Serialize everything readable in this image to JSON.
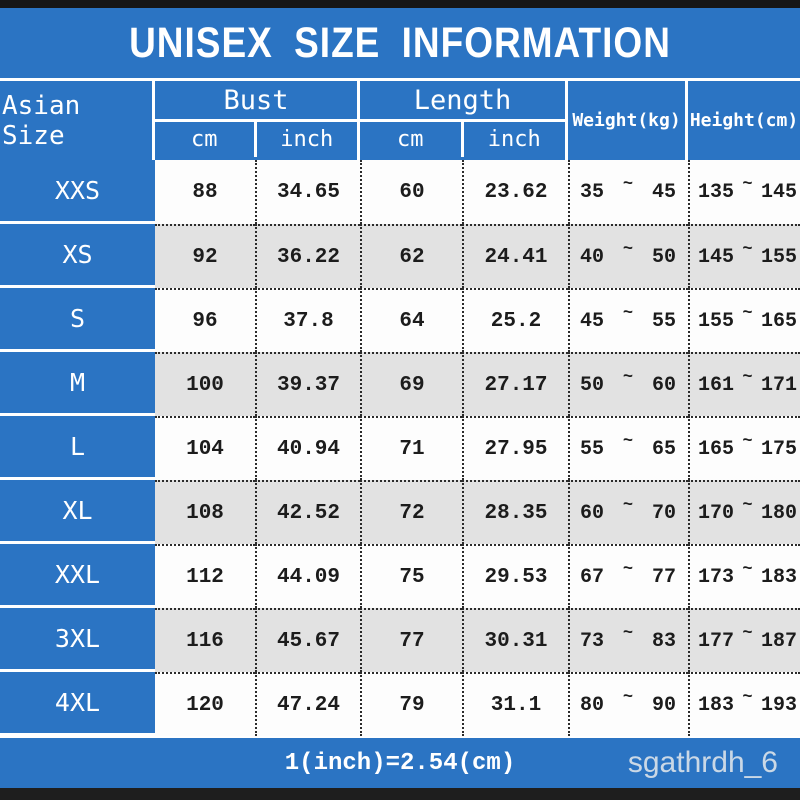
{
  "title": "UNISEX SIZE INFORMATION",
  "colors": {
    "accent_blue": "#2b74c3",
    "row_alt_gray": "#e2e2e2",
    "top_bar": "#161616",
    "bottom_bar": "#1e1e1e"
  },
  "table": {
    "header": {
      "size_label": "Asian Size",
      "bust_label": "Bust",
      "length_label": "Length",
      "unit_cm": "cm",
      "unit_inch": "inch",
      "weight_label": "Weight(kg)",
      "height_label": "Height(cm)"
    },
    "tilde": "~",
    "rows": [
      {
        "size": "XXS",
        "bust_cm": "88",
        "bust_inch": "34.65",
        "length_cm": "60",
        "length_inch": "23.62",
        "weight_min": "35",
        "weight_max": "45",
        "height_min": "135",
        "height_max": "145"
      },
      {
        "size": "XS",
        "bust_cm": "92",
        "bust_inch": "36.22",
        "length_cm": "62",
        "length_inch": "24.41",
        "weight_min": "40",
        "weight_max": "50",
        "height_min": "145",
        "height_max": "155"
      },
      {
        "size": "S",
        "bust_cm": "96",
        "bust_inch": "37.8",
        "length_cm": "64",
        "length_inch": "25.2",
        "weight_min": "45",
        "weight_max": "55",
        "height_min": "155",
        "height_max": "165"
      },
      {
        "size": "M",
        "bust_cm": "100",
        "bust_inch": "39.37",
        "length_cm": "69",
        "length_inch": "27.17",
        "weight_min": "50",
        "weight_max": "60",
        "height_min": "161",
        "height_max": "171"
      },
      {
        "size": "L",
        "bust_cm": "104",
        "bust_inch": "40.94",
        "length_cm": "71",
        "length_inch": "27.95",
        "weight_min": "55",
        "weight_max": "65",
        "height_min": "165",
        "height_max": "175"
      },
      {
        "size": "XL",
        "bust_cm": "108",
        "bust_inch": "42.52",
        "length_cm": "72",
        "length_inch": "28.35",
        "weight_min": "60",
        "weight_max": "70",
        "height_min": "170",
        "height_max": "180"
      },
      {
        "size": "XXL",
        "bust_cm": "112",
        "bust_inch": "44.09",
        "length_cm": "75",
        "length_inch": "29.53",
        "weight_min": "67",
        "weight_max": "77",
        "height_min": "173",
        "height_max": "183"
      },
      {
        "size": "3XL",
        "bust_cm": "116",
        "bust_inch": "45.67",
        "length_cm": "77",
        "length_inch": "30.31",
        "weight_min": "73",
        "weight_max": "83",
        "height_min": "177",
        "height_max": "187"
      },
      {
        "size": "4XL",
        "bust_cm": "120",
        "bust_inch": "47.24",
        "length_cm": "79",
        "length_inch": "31.1",
        "weight_min": "80",
        "weight_max": "90",
        "height_min": "183",
        "height_max": "193"
      }
    ]
  },
  "footer": {
    "note": "1(inch)=2.54(cm)",
    "watermark": "sgathrdh_6"
  },
  "chart_data": {
    "type": "table",
    "title": "UNISEX SIZE INFORMATION",
    "columns": [
      "Asian Size",
      "Bust cm",
      "Bust inch",
      "Length cm",
      "Length inch",
      "Weight(kg)",
      "Height(cm)"
    ],
    "rows": [
      [
        "XXS",
        88,
        34.65,
        60,
        23.62,
        "35~45",
        "135~145"
      ],
      [
        "XS",
        92,
        36.22,
        62,
        24.41,
        "40~50",
        "145~155"
      ],
      [
        "S",
        96,
        37.8,
        64,
        25.2,
        "45~55",
        "155~165"
      ],
      [
        "M",
        100,
        39.37,
        69,
        27.17,
        "50~60",
        "161~171"
      ],
      [
        "L",
        104,
        40.94,
        71,
        27.95,
        "55~65",
        "165~175"
      ],
      [
        "XL",
        108,
        42.52,
        72,
        28.35,
        "60~70",
        "170~180"
      ],
      [
        "XXL",
        112,
        44.09,
        75,
        29.53,
        "67~77",
        "173~183"
      ],
      [
        "3XL",
        116,
        45.67,
        77,
        30.31,
        "73~83",
        "177~187"
      ],
      [
        "4XL",
        120,
        47.24,
        79,
        31.1,
        "80~90",
        "183~193"
      ]
    ],
    "note": "1(inch)=2.54(cm)"
  }
}
